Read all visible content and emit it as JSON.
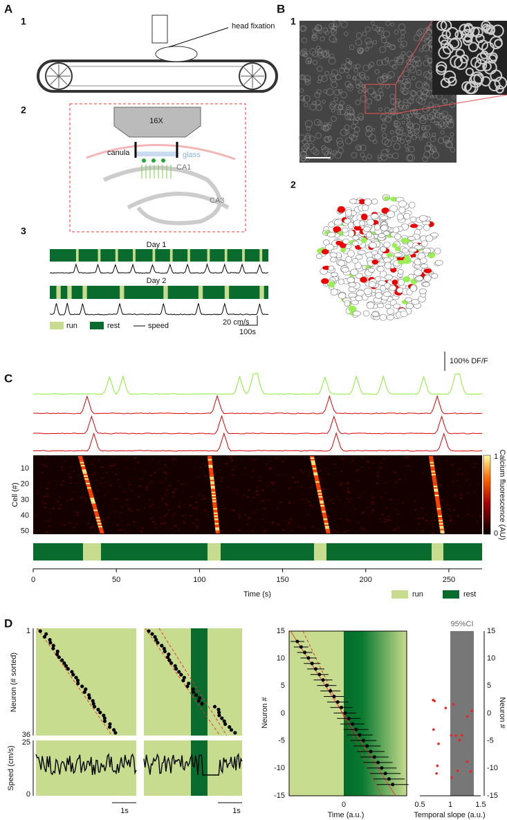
{
  "panels": {
    "A": {
      "label": "A",
      "sub1": "1",
      "annotation": "head fixation",
      "sub2": "2",
      "objective": "16X",
      "canula": "canula",
      "glass": "glass",
      "ca1": "CA1",
      "ca3": "CA3",
      "sub3": "3",
      "day1": "Day 1",
      "day2": "Day 2",
      "legend": [
        "run",
        "rest",
        "speed"
      ],
      "scale_speed": "20 cm/s",
      "scale_time": "100s"
    },
    "B": {
      "label": "B",
      "sub1": "1",
      "sub2": "2"
    },
    "C": {
      "label": "C",
      "scale": "100% DF/F",
      "y_label": "Cell (#)",
      "y_ticks": [
        "10",
        "20",
        "30",
        "40",
        "50"
      ],
      "colorbar_label": "Calcium fluorescence (AU)",
      "colorbar_ticks": [
        "1",
        "0"
      ],
      "x_ticks": [
        "0",
        "50",
        "100",
        "150",
        "200",
        "250"
      ],
      "x_label": "Time (s)",
      "legend": [
        "run",
        "rest"
      ]
    },
    "D": {
      "label": "D",
      "y_label": "Neuron (# sorted)",
      "y_ticks": [
        "1",
        "36"
      ],
      "speed_label": "Speed (cm/s)",
      "speed_ticks": [
        "25",
        "0"
      ],
      "scale_1": "1s",
      "scale_2": "1s",
      "mid_y_label": "Neuron #",
      "mid_y_ticks": [
        "15",
        "10",
        "5",
        "0",
        "-5",
        "-10",
        "-15"
      ],
      "mid_x_tick": "0",
      "mid_x_label": "Time (a.u.)",
      "ci_label": "95%CI",
      "right_y_ticks": [
        "15",
        "10",
        "5",
        "0",
        "-5",
        "-10",
        "-15"
      ],
      "right_y_label": "Neuron #",
      "right_x_ticks": [
        "0.5",
        "1",
        "1.5"
      ],
      "right_x_label": "Temporal slope (a.u.)"
    }
  }
}
